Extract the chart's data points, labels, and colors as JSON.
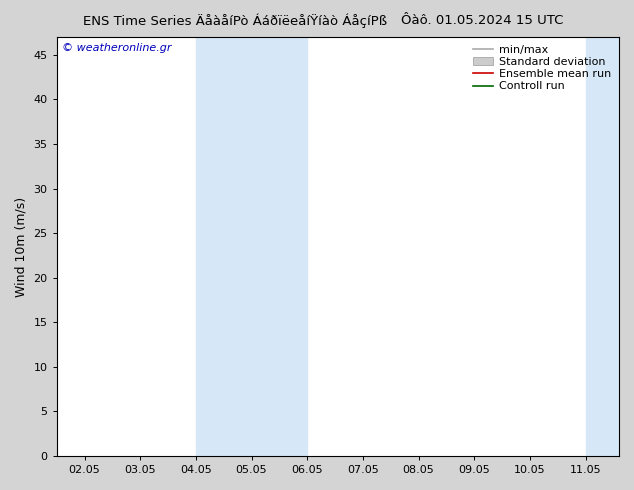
{
  "title_left": "ENS Time Series ÄåàåíPò ÁáðïëeåíŸíàò ÁåçíPß",
  "title_right": "Ôàô. 01.05.2024 15 UTC",
  "ylabel": "Wind 10m (m/s)",
  "watermark": "© weatheronline.gr",
  "ylim_min": 0,
  "ylim_max": 47,
  "yticks": [
    0,
    5,
    10,
    15,
    20,
    25,
    30,
    35,
    40,
    45
  ],
  "xtick_labels": [
    "02.05",
    "03.05",
    "04.05",
    "05.05",
    "06.05",
    "07.05",
    "08.05",
    "09.05",
    "10.05",
    "11.05"
  ],
  "xtick_positions": [
    0,
    1,
    2,
    3,
    4,
    5,
    6,
    7,
    8,
    9
  ],
  "xlim_min": -0.5,
  "xlim_max": 9.6,
  "shaded_bands": [
    {
      "xmin": 2.0,
      "xmax": 4.0
    },
    {
      "xmin": 9.0,
      "xmax": 9.6
    }
  ],
  "shaded_color": "#d6e8f7",
  "plot_bg_color": "#ffffff",
  "fig_bg_color": "#d4d4d4",
  "legend_entries": [
    {
      "label": "min/max",
      "color": "#aaaaaa",
      "lw": 1.2,
      "type": "line"
    },
    {
      "label": "Standard deviation",
      "color": "#cccccc",
      "lw": 5,
      "type": "band"
    },
    {
      "label": "Ensemble mean run",
      "color": "#cc0000",
      "lw": 1.2,
      "type": "line"
    },
    {
      "label": "Controll run",
      "color": "#006600",
      "lw": 1.2,
      "type": "line"
    }
  ],
  "title_fontsize": 9.5,
  "tick_fontsize": 8,
  "ylabel_fontsize": 9,
  "legend_fontsize": 8,
  "watermark_color": "#0000bb",
  "watermark_fontsize": 8
}
